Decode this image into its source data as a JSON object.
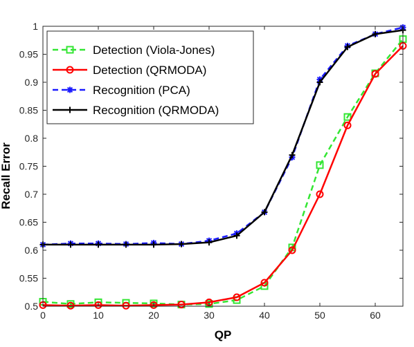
{
  "chart_data": {
    "type": "line",
    "title": "",
    "xlabel": "QP",
    "ylabel": "Recall Error",
    "xlim": [
      0,
      65
    ],
    "ylim": [
      0.5,
      1.0
    ],
    "xticks": [
      0,
      10,
      20,
      30,
      40,
      50,
      60
    ],
    "xtick_labels": [
      "0",
      "10",
      "20",
      "30",
      "40",
      "50",
      "60"
    ],
    "yticks": [
      0.5,
      0.55,
      0.6,
      0.65,
      0.7,
      0.75,
      0.8,
      0.85,
      0.9,
      0.95,
      1.0
    ],
    "ytick_labels": [
      "0.5",
      "0.55",
      "0.6",
      "0.65",
      "0.7",
      "0.75",
      "0.8",
      "0.85",
      "0.9",
      "0.95",
      "1"
    ],
    "grid": false,
    "legend_position": "top-left",
    "x": [
      0,
      5,
      10,
      15,
      20,
      25,
      30,
      35,
      40,
      45,
      50,
      55,
      60,
      65
    ],
    "series": [
      {
        "name": "Detection (Viola-Jones)",
        "color": "#33e633",
        "dash": "dashed",
        "marker": "square",
        "values": [
          0.508,
          0.504,
          0.507,
          0.506,
          0.505,
          0.503,
          0.504,
          0.511,
          0.536,
          0.605,
          0.752,
          0.838,
          0.916,
          0.977
        ]
      },
      {
        "name": "Detection (QRMODA)",
        "color": "#ff0000",
        "dash": "solid",
        "marker": "circle",
        "values": [
          0.502,
          0.501,
          0.502,
          0.501,
          0.502,
          0.503,
          0.507,
          0.516,
          0.542,
          0.6,
          0.7,
          0.823,
          0.915,
          0.965
        ]
      },
      {
        "name": "Recognition (PCA)",
        "color": "#1a1aff",
        "dash": "dashed",
        "marker": "asterisk",
        "values": [
          0.61,
          0.612,
          0.612,
          0.611,
          0.613,
          0.611,
          0.617,
          0.63,
          0.668,
          0.766,
          0.905,
          0.965,
          0.986,
          0.998
        ]
      },
      {
        "name": "Recognition (QRMODA)",
        "color": "#000000",
        "dash": "solid",
        "marker": "plus",
        "values": [
          0.61,
          0.61,
          0.61,
          0.61,
          0.61,
          0.611,
          0.614,
          0.626,
          0.668,
          0.77,
          0.9,
          0.963,
          0.986,
          0.993
        ]
      }
    ]
  }
}
